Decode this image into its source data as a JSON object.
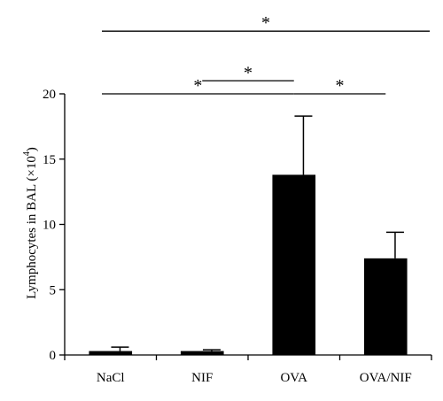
{
  "chart_data": {
    "type": "bar",
    "categories": [
      "NaCl",
      "NIF",
      "OVA",
      "OVA/NIF"
    ],
    "values": [
      0.3,
      0.3,
      13.8,
      7.4
    ],
    "error": [
      0.3,
      0.1,
      4.5,
      2.0
    ],
    "ylabel_main": "Lymphocytes in BAL (×10",
    "ylabel_exp": "4",
    "ylabel_close": ")",
    "ylim": [
      0,
      20
    ],
    "yticks": [
      0,
      5,
      10,
      15,
      20
    ],
    "bar_color": "#000000",
    "significance": [
      {
        "from": 0,
        "to": 2,
        "y": 20.0,
        "label": "*"
      },
      {
        "from": 1,
        "to": 2,
        "y": 21.0,
        "label": "*"
      },
      {
        "from": 2,
        "to": 3,
        "y": 20.0,
        "label": "*"
      },
      {
        "from": 0,
        "to": 3,
        "y": 24.8,
        "label": "*"
      }
    ]
  }
}
